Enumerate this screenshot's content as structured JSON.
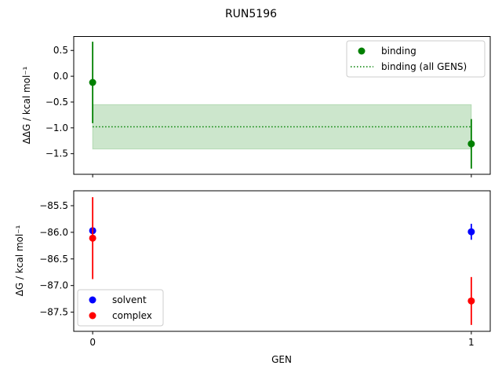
{
  "chart_data": [
    {
      "type": "scatter",
      "title": "RUN5196",
      "xlabel": "",
      "ylabel": "ΔΔG / kcal mol⁻¹",
      "xlim": [
        -0.05,
        1.05
      ],
      "ylim": [
        -1.9,
        0.77
      ],
      "xticks": [
        0,
        1
      ],
      "yticks": [
        0.5,
        0.0,
        -0.5,
        -1.0,
        -1.5
      ],
      "ytick_labels": [
        "0.5",
        "0.0",
        "−0.5",
        "−1.0",
        "−1.5"
      ],
      "grid": false,
      "legend_position": "top-right",
      "series": [
        {
          "name": "binding",
          "color": "#008000",
          "x": [
            0,
            1
          ],
          "y": [
            -0.12,
            -1.31
          ],
          "yerr": [
            0.79,
            0.48
          ]
        }
      ],
      "band": {
        "name": "binding (all GENS)",
        "color": "#008000",
        "x": [
          0,
          1
        ],
        "y": -0.98,
        "err": 0.43
      }
    },
    {
      "type": "scatter",
      "xlabel": "GEN",
      "ylabel": "ΔG / kcal mol⁻¹",
      "xlim": [
        -0.05,
        1.05
      ],
      "ylim": [
        -87.86,
        -85.22
      ],
      "xticks": [
        0,
        1
      ],
      "xtick_labels": [
        "0",
        "1"
      ],
      "yticks": [
        -85.5,
        -86.0,
        -86.5,
        -87.0,
        -87.5
      ],
      "ytick_labels": [
        "−85.5",
        "−86.0",
        "−86.5",
        "−87.0",
        "−87.5"
      ],
      "grid": false,
      "legend_position": "bottom-left",
      "series": [
        {
          "name": "solvent",
          "color": "#0000ff",
          "x": [
            0,
            1
          ],
          "y": [
            -85.97,
            -85.99
          ],
          "yerr": [
            0.02,
            0.15
          ]
        },
        {
          "name": "complex",
          "color": "#ff0000",
          "x": [
            0,
            1
          ],
          "y": [
            -86.11,
            -87.29
          ],
          "yerr": [
            0.77,
            0.45
          ]
        }
      ]
    }
  ]
}
